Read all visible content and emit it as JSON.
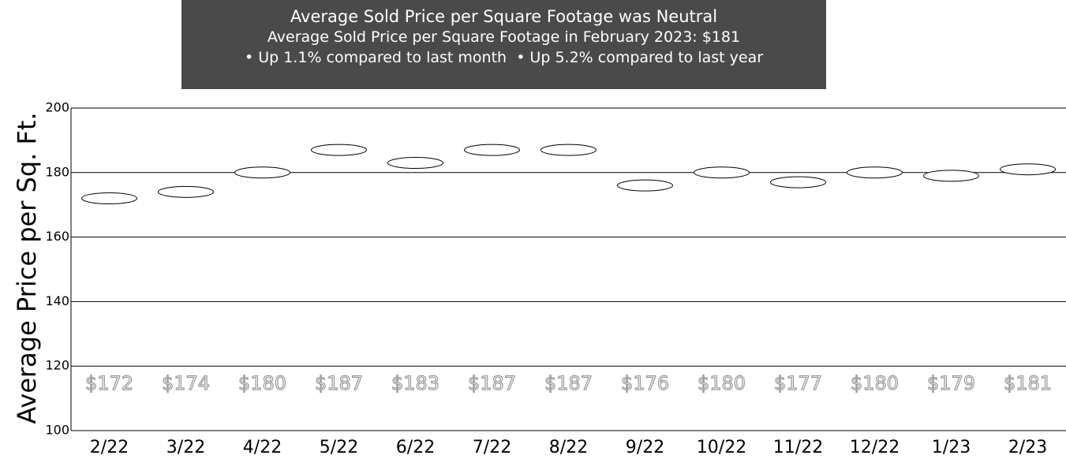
{
  "chart_data": {
    "type": "ellipse",
    "title": "Average Sold Price per Square Footage was Neutral",
    "subtitle": "Average Sold Price per Square Footage in February 2023: $181",
    "annotations": [
      "• Up 1.1% compared to last month",
      "• Up 5.2% compared to last year"
    ],
    "y_label": "Average Price per Sq. Ft.",
    "categories": [
      "2/22",
      "3/22",
      "4/22",
      "5/22",
      "6/22",
      "7/22",
      "8/22",
      "9/22",
      "10/22",
      "11/22",
      "12/22",
      "1/23",
      "2/23"
    ],
    "values": [
      172,
      174,
      180,
      187,
      183,
      187,
      187,
      176,
      180,
      177,
      180,
      179,
      181
    ],
    "value_labels": [
      "$172",
      "$174",
      "$180",
      "$187",
      "$183",
      "$187",
      "$187",
      "$176",
      "$180",
      "$177",
      "$180",
      "$179",
      "$181"
    ],
    "ylim": [
      100,
      200
    ],
    "yticks": [
      100,
      120,
      140,
      160,
      180,
      200
    ],
    "grid": true,
    "color": "#ffffff"
  }
}
